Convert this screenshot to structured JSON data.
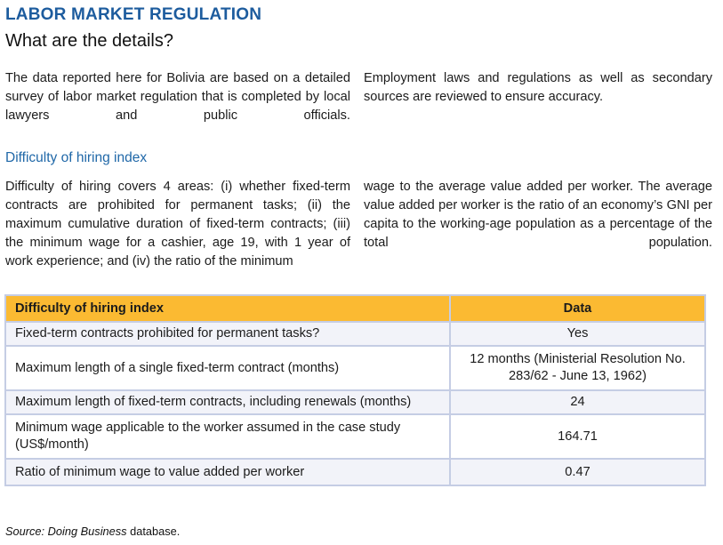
{
  "page": {
    "title": "LABOR MARKET REGULATION",
    "subtitle": "What are the details?"
  },
  "intro": {
    "col_left": "The data reported here for Bolivia are based on a detailed survey of labor market regulation that is completed by local lawyers and public officials.",
    "col_right": "Employment laws and regulations as well as secondary sources are reviewed to ensure accuracy."
  },
  "section": {
    "heading": "Difficulty of hiring index",
    "col_left": "Difficulty of hiring covers 4 areas: (i) whether fixed-term contracts are prohibited for permanent tasks; (ii) the maximum cumulative duration of fixed-term contracts; (iii) the minimum wage for a cashier, age 19, with 1 year of work experience; and (iv) the ratio of the minimum",
    "col_right": "wage to the average value added per worker.  The average value added per worker is the ratio of an economy’s GNI per capita to the working-age population as a percentage of the total population."
  },
  "table": {
    "header": {
      "label": "Difficulty of hiring index",
      "data_label": "Data"
    },
    "rows": [
      {
        "label": "Fixed-term contracts prohibited for permanent tasks?",
        "value": "Yes"
      },
      {
        "label": "Maximum length of a single fixed-term contract (months)",
        "value": "12 months (Ministerial Resolution No. 283/62 -  June 13, 1962)"
      },
      {
        "label": "Maximum length of fixed-term contracts, including renewals (months)",
        "value": "24"
      },
      {
        "label": "Minimum wage applicable to the worker assumed in the case study (US$/month)",
        "value": "164.71"
      },
      {
        "label": "Ratio of minimum wage to value added per worker",
        "value": "0.47"
      }
    ]
  },
  "footer": {
    "source_italic": "Source: Doing Business",
    "source_regular": " database."
  },
  "colors": {
    "title_blue": "#1d5c9e",
    "heading_blue": "#2068a8",
    "table_header_bg": "#fbba32",
    "row_alt_bg": "#f2f3f9",
    "table_border": "#c5cde4"
  }
}
